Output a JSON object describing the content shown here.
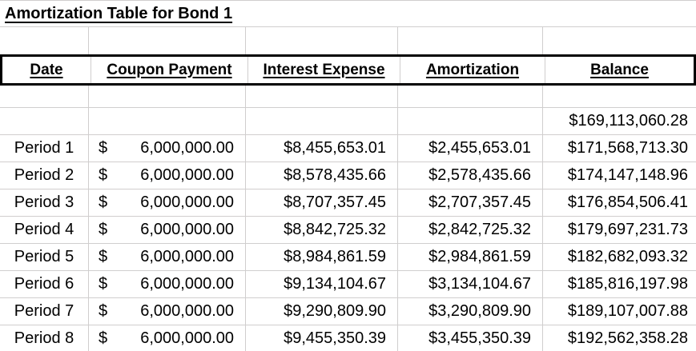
{
  "title": "Amortization Table for Bond 1",
  "table": {
    "headers": [
      "Date",
      "Coupon Payment",
      "Interest Expense",
      "Amortization",
      "Balance"
    ],
    "rows": [
      {
        "date": "",
        "coupon_dollar": "",
        "coupon_amount": "",
        "interest": "",
        "amortization": "",
        "balance": "$169,113,060.28"
      },
      {
        "date": "Period 1",
        "coupon_dollar": "$",
        "coupon_amount": "6,000,000.00",
        "interest": "$8,455,653.01",
        "amortization": "$2,455,653.01",
        "balance": "$171,568,713.30"
      },
      {
        "date": "Period 2",
        "coupon_dollar": "$",
        "coupon_amount": "6,000,000.00",
        "interest": "$8,578,435.66",
        "amortization": "$2,578,435.66",
        "balance": "$174,147,148.96"
      },
      {
        "date": "Period 3",
        "coupon_dollar": "$",
        "coupon_amount": "6,000,000.00",
        "interest": "$8,707,357.45",
        "amortization": "$2,707,357.45",
        "balance": "$176,854,506.41"
      },
      {
        "date": "Period 4",
        "coupon_dollar": "$",
        "coupon_amount": "6,000,000.00",
        "interest": "$8,842,725.32",
        "amortization": "$2,842,725.32",
        "balance": "$179,697,231.73"
      },
      {
        "date": "Period 5",
        "coupon_dollar": "$",
        "coupon_amount": "6,000,000.00",
        "interest": "$8,984,861.59",
        "amortization": "$2,984,861.59",
        "balance": "$182,682,093.32"
      },
      {
        "date": "Period 6",
        "coupon_dollar": "$",
        "coupon_amount": "6,000,000.00",
        "interest": "$9,134,104.67",
        "amortization": "$3,134,104.67",
        "balance": "$185,816,197.98"
      },
      {
        "date": "Period 7",
        "coupon_dollar": "$",
        "coupon_amount": "6,000,000.00",
        "interest": "$9,290,809.90",
        "amortization": "$3,290,809.90",
        "balance": "$189,107,007.88"
      },
      {
        "date": "Period 8",
        "coupon_dollar": "$",
        "coupon_amount": "6,000,000.00",
        "interest": "$9,455,350.39",
        "amortization": "$3,455,350.39",
        "balance": "$192,562,358.28"
      }
    ]
  },
  "colors": {
    "gridline": "#d0cece",
    "header_border": "#000000",
    "text": "#000000",
    "background": "#ffffff"
  }
}
